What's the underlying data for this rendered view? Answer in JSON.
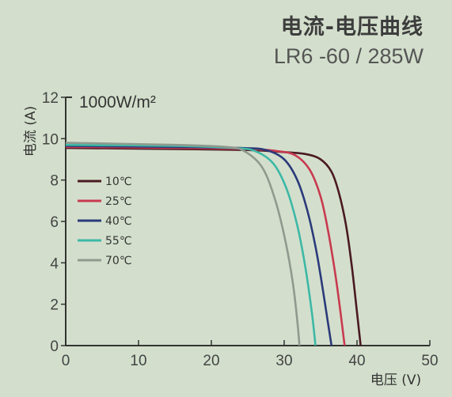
{
  "header": {
    "title": "电流-电压曲线",
    "subtitle": "LR6 -60 / 285W"
  },
  "chart_data": {
    "type": "line",
    "title": "电流-电压曲线",
    "subtitle": "LR6 -60 / 285W",
    "annotation": "1000W/m²",
    "xlabel": "电压 (V)",
    "ylabel": "电流 (A)",
    "xlim": [
      0,
      50
    ],
    "ylim": [
      0,
      12
    ],
    "xticks": [
      0,
      10,
      20,
      30,
      40,
      50
    ],
    "yticks": [
      0,
      2,
      4,
      6,
      8,
      10,
      12
    ],
    "grid": false,
    "legend_position": "left-middle",
    "series": [
      {
        "name": "10℃",
        "color": "#4a1a22",
        "x": [
          0,
          15,
          25,
          30,
          33,
          35,
          36.5,
          37.5,
          38.5,
          39.3,
          40,
          40.5
        ],
        "y": [
          9.55,
          9.5,
          9.45,
          9.35,
          9.25,
          9.0,
          8.4,
          7.4,
          5.8,
          3.8,
          1.6,
          0
        ]
      },
      {
        "name": "25℃",
        "color": "#c83a50",
        "x": [
          0,
          15,
          25,
          29,
          31.5,
          33.5,
          35,
          36,
          37,
          37.7,
          38.3
        ],
        "y": [
          9.6,
          9.55,
          9.5,
          9.4,
          9.2,
          8.5,
          7.2,
          5.6,
          3.5,
          1.7,
          0
        ]
      },
      {
        "name": "40℃",
        "color": "#2b3a7a",
        "x": [
          0,
          15,
          24,
          27.5,
          30,
          31.8,
          33.2,
          34.4,
          35.4,
          36.1,
          36.5
        ],
        "y": [
          9.65,
          9.6,
          9.55,
          9.45,
          9.0,
          8.0,
          6.5,
          4.6,
          2.5,
          0.9,
          0
        ]
      },
      {
        "name": "55℃",
        "color": "#3db8a6",
        "x": [
          0,
          15,
          23,
          26,
          28.5,
          30.3,
          31.8,
          32.9,
          33.8,
          34.3
        ],
        "y": [
          9.7,
          9.65,
          9.55,
          9.4,
          8.8,
          7.6,
          5.8,
          3.8,
          1.6,
          0
        ]
      },
      {
        "name": "70℃",
        "color": "#8f9a8f",
        "x": [
          0,
          15,
          22,
          24.5,
          27,
          28.8,
          30.2,
          31.2,
          31.8,
          32.1
        ],
        "y": [
          9.8,
          9.7,
          9.6,
          9.4,
          8.6,
          7.0,
          5.0,
          3.0,
          1.2,
          0
        ]
      }
    ]
  }
}
